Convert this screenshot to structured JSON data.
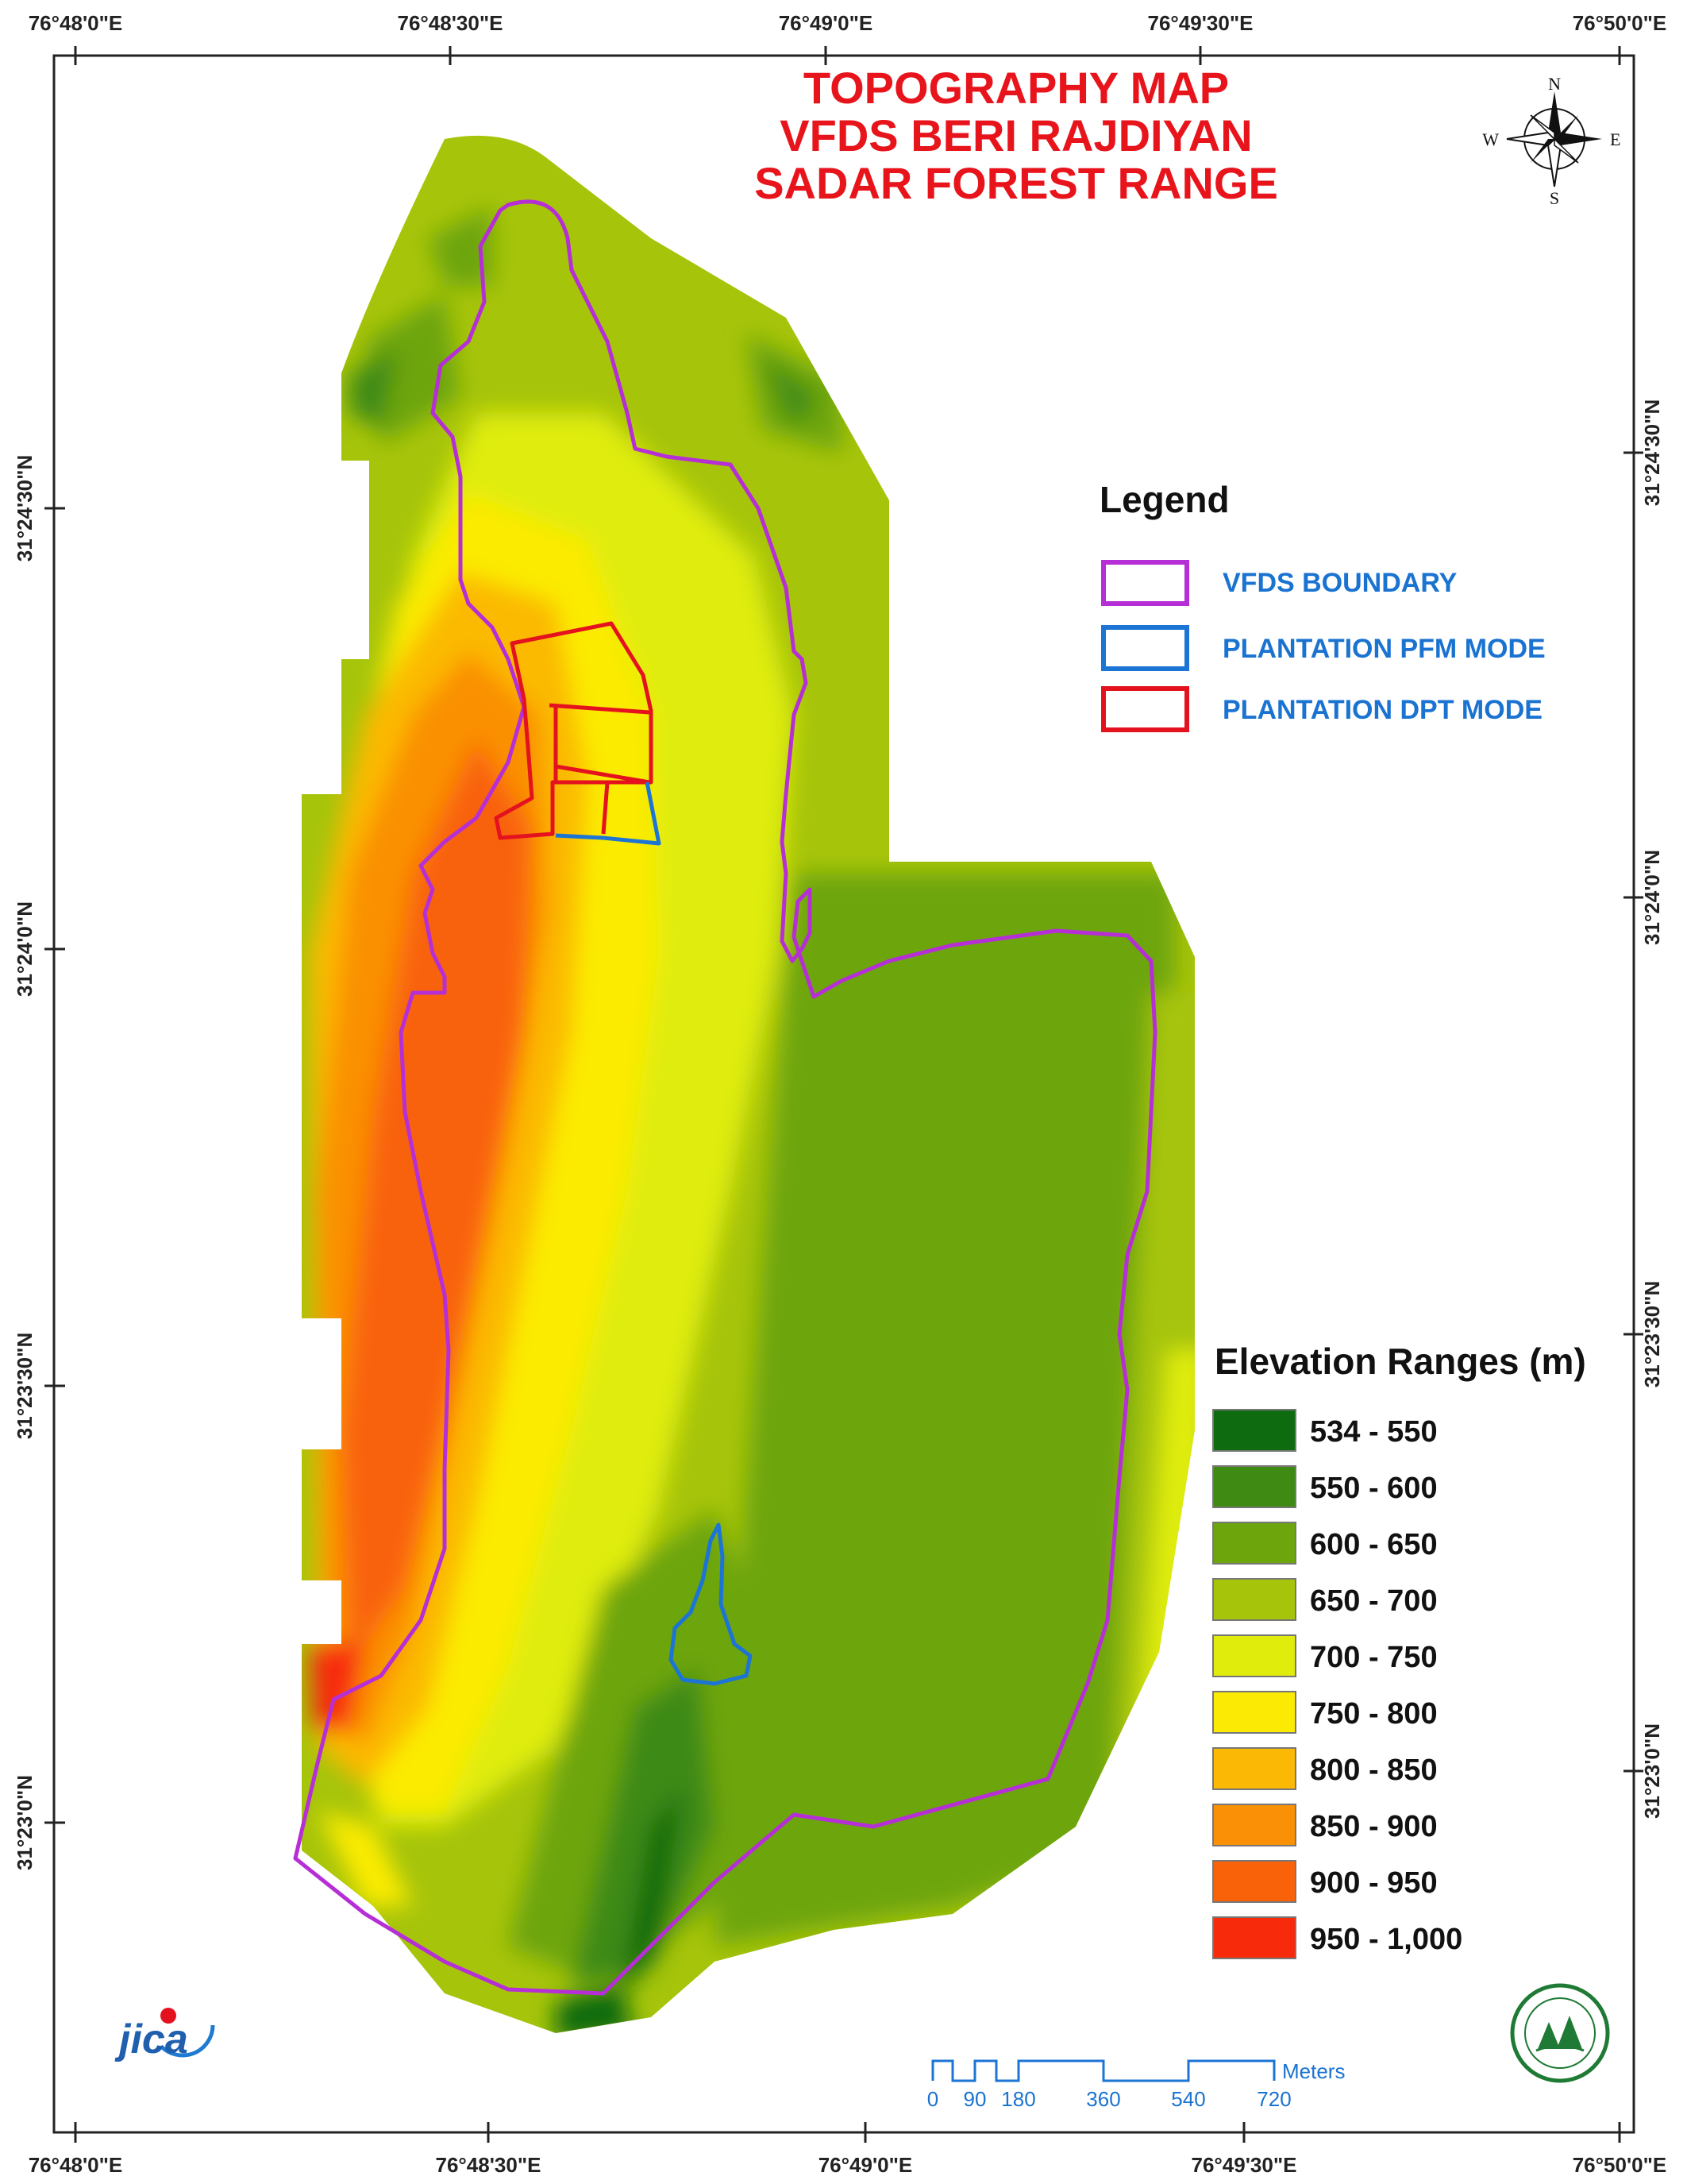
{
  "map": {
    "title_lines": [
      "TOPOGRAPHY MAP",
      "VFDS BERI RAJDIYAN",
      "SADAR FOREST RANGE"
    ],
    "longitude_labels": [
      "76°48'0\"E",
      "76°48'30\"E",
      "76°49'0\"E",
      "76°49'30\"E",
      "76°50'0\"E"
    ],
    "latitude_labels": [
      "31°24'30\"N",
      "31°24'0\"N",
      "31°23'30\"N",
      "31°23'0\"N"
    ],
    "compass": {
      "n": "N",
      "s": "S",
      "e": "E",
      "w": "W"
    }
  },
  "legend": {
    "title": "Legend",
    "items": [
      {
        "label": "VFDS BOUNDARY",
        "color": "#b62fd6"
      },
      {
        "label": "PLANTATION PFM MODE",
        "color": "#1c74d4"
      },
      {
        "label": "PLANTATION DPT MODE",
        "color": "#e4121e"
      }
    ]
  },
  "elevation": {
    "title": "Elevation Ranges (m)",
    "classes": [
      {
        "label": "534 - 550",
        "color": "#0e6b10"
      },
      {
        "label": "550 - 600",
        "color": "#3e8a12"
      },
      {
        "label": "600 - 650",
        "color": "#6da50c"
      },
      {
        "label": "650 - 700",
        "color": "#a6c40a"
      },
      {
        "label": "700 - 750",
        "color": "#dfec0c"
      },
      {
        "label": "750 - 800",
        "color": "#fbeb04"
      },
      {
        "label": "800 - 850",
        "color": "#fbb905"
      },
      {
        "label": "850 - 900",
        "color": "#fa9006"
      },
      {
        "label": "900 - 950",
        "color": "#f96208"
      },
      {
        "label": "950 - 1,000",
        "color": "#f72b0c"
      }
    ]
  },
  "scale_bar": {
    "unit": "Meters",
    "ticks": [
      "0",
      "90",
      "180",
      "360",
      "540",
      "720"
    ]
  },
  "logos": {
    "jica_text": "jica"
  }
}
